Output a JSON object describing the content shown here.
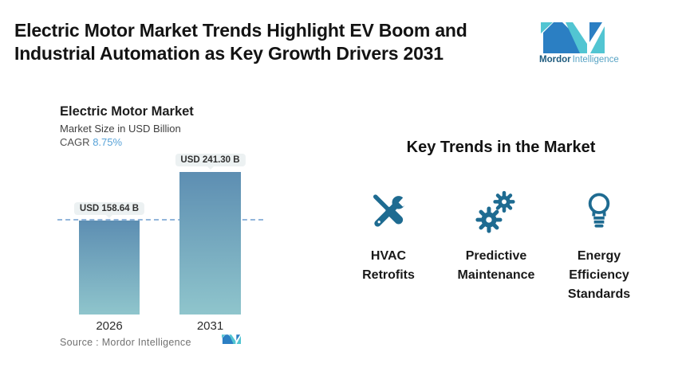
{
  "header": {
    "title_lines": [
      "Electric Motor Market Trends Highlight EV Boom and",
      "Industrial Automation as Key Growth Drivers 2031"
    ],
    "logo": {
      "brand_bold": "Mordor",
      "brand_light": "Intelligence",
      "blue": "#2b7fc3",
      "teal": "#52c5d2"
    }
  },
  "chart_data": {
    "type": "bar",
    "title": "Electric Motor Market",
    "subtitle": "Market Size in USD Billion",
    "cagr_label": "CAGR",
    "cagr_value": "8.75%",
    "categories": [
      "2026",
      "2031"
    ],
    "values": [
      158.64,
      241.3
    ],
    "value_labels": [
      "USD 158.64 B",
      "USD 241.30 B"
    ],
    "ylabel": "Market Size in USD Billion",
    "ylim": [
      0,
      265
    ],
    "reference_line_value": 158.64,
    "grid": false,
    "legend": false,
    "source_label": "Source :  Mordor Intelligence",
    "colors": {
      "bar_top": "#5d8eb2",
      "bar_bottom": "#8fc5cc",
      "dashed_line": "#92b5db",
      "label_pill_bg": "#ecf1f2",
      "cagr_accent": "#59a3d8"
    }
  },
  "trends": {
    "heading": "Key Trends in the Market",
    "icon_color": "#1e6b91",
    "items": [
      {
        "icon": "wrench-screwdriver-icon",
        "lines": [
          "HVAC",
          "Retrofits"
        ]
      },
      {
        "icon": "gears-icon",
        "lines": [
          "Predictive",
          "Maintenance"
        ]
      },
      {
        "icon": "lightbulb-icon",
        "lines": [
          "Energy",
          "Efficiency",
          "Standards"
        ]
      }
    ]
  }
}
